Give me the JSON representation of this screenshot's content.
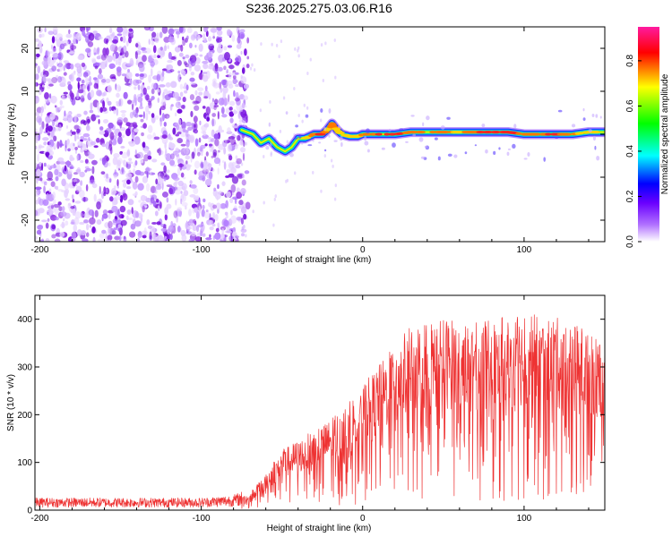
{
  "title": "S236.2025.275.03.06.R16",
  "colors": {
    "axis": "#000000",
    "snr_line": "#ee3333",
    "spectrum_noise": "#8a2be2",
    "spectrum_ridge_core": "#ff2a2a"
  },
  "chart_data": [
    {
      "type": "heatmap",
      "xlabel": "Height of straight line (km)",
      "ylabel": "Frequency (Hz)",
      "xlim": [
        -203,
        150
      ],
      "ylim": [
        -25,
        25
      ],
      "x_ticks": [
        -200,
        -100,
        0,
        100
      ],
      "x_tick_labels": [
        "-200",
        "-100",
        "0",
        "100"
      ],
      "y_ticks": [
        -20,
        -10,
        0,
        10,
        20
      ],
      "y_tick_labels": [
        "-20",
        "-10",
        "0",
        "10",
        "20"
      ],
      "colorbar": {
        "label": "Normalized spectral amplitude",
        "range": [
          0,
          0.95
        ],
        "ticks": [
          0.0,
          0.2,
          0.4,
          0.6,
          0.8
        ],
        "tick_labels": [
          "0.0",
          "0.2",
          "0.4",
          "0.6",
          "0.8"
        ],
        "colormap": [
          "#ffffff",
          "#8a00ff",
          "#0000ff",
          "#00ffff",
          "#00ff00",
          "#ffff00",
          "#ff0000",
          "#ff00aa"
        ]
      },
      "noise_region_x": [
        -203,
        -75
      ],
      "ridge": {
        "x": [
          -75,
          -68,
          -63,
          -58,
          -53,
          -48,
          -44,
          -40,
          -36,
          -30,
          -25,
          -22,
          -19,
          -16,
          -13,
          -8,
          -3,
          0,
          10,
          20,
          30,
          40,
          50,
          60,
          70,
          80,
          90,
          100,
          110,
          120,
          130,
          140,
          150
        ],
        "y": [
          1,
          0,
          -2,
          -1,
          -3,
          -4,
          -3,
          -1,
          -1,
          0,
          0,
          1,
          2.5,
          1,
          0,
          -0.5,
          -0.5,
          0,
          0,
          0,
          0.5,
          0.5,
          0.5,
          0.5,
          0.5,
          0.5,
          0.5,
          0,
          0,
          0,
          0,
          0.5,
          0.5
        ],
        "amplitude": [
          0.5,
          0.4,
          0.4,
          0.35,
          0.35,
          0.3,
          0.35,
          0.45,
          0.6,
          0.8,
          0.85,
          0.7,
          0.8,
          0.7,
          0.6,
          0.65,
          0.7,
          0.75,
          0.85,
          0.85,
          0.8,
          0.75,
          0.75,
          0.7,
          0.8,
          0.9,
          0.9,
          0.75,
          0.8,
          0.85,
          0.75,
          0.65,
          0.6
        ]
      }
    },
    {
      "type": "line",
      "xlabel": "Height of straight line (km)",
      "ylabel": "SNR (10 * v/v)",
      "xlim": [
        -203,
        150
      ],
      "ylim": [
        0,
        450
      ],
      "x_ticks": [
        -200,
        -100,
        0,
        100
      ],
      "x_tick_labels": [
        "-200",
        "-100",
        "0",
        "100"
      ],
      "y_ticks": [
        0,
        100,
        200,
        300,
        400
      ],
      "y_tick_labels": [
        "0",
        "100",
        "200",
        "300",
        "400"
      ],
      "series": [
        {
          "envelope_x": [
            -203,
            -150,
            -100,
            -80,
            -70,
            -60,
            -55,
            -50,
            -40,
            -30,
            -20,
            -10,
            0,
            10,
            20,
            30,
            40,
            50,
            60,
            70,
            80,
            90,
            100,
            110,
            120,
            130,
            140,
            150
          ],
          "envelope_y": [
            20,
            20,
            20,
            25,
            35,
            70,
            100,
            120,
            140,
            160,
            180,
            210,
            250,
            290,
            330,
            370,
            385,
            385,
            380,
            375,
            380,
            390,
            395,
            390,
            385,
            375,
            365,
            355
          ]
        }
      ]
    }
  ]
}
